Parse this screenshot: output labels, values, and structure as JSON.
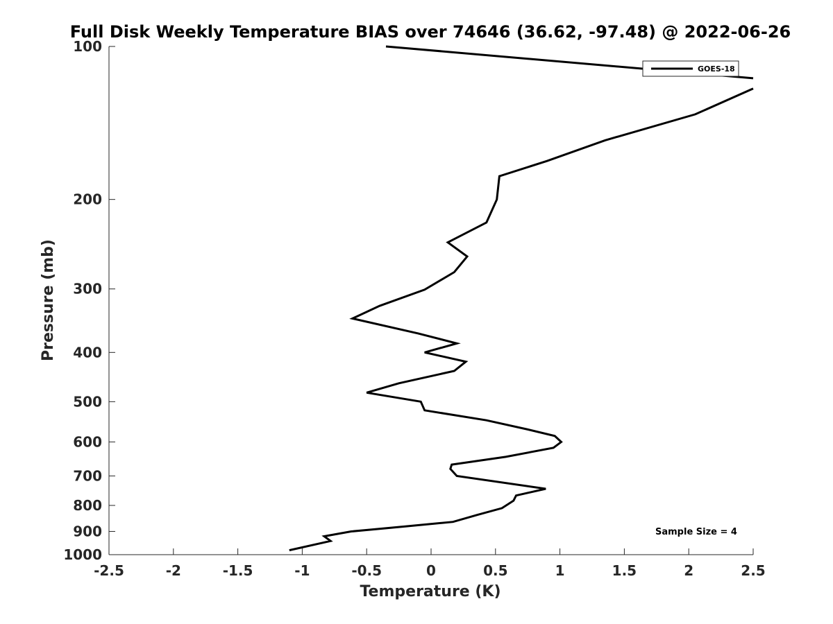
{
  "chart_data": {
    "type": "line",
    "title": "Full Disk Weekly Temperature BIAS over 74646 (36.62, -97.48) @ 2022-06-26",
    "xlabel": "Temperature (K)",
    "ylabel": "Pressure (mb)",
    "xlim": [
      -2.5,
      2.5
    ],
    "ylim": [
      1000,
      100
    ],
    "yscale": "log",
    "xticks": [
      "-2.5",
      "-2",
      "-1.5",
      "-1",
      "-0.5",
      "0",
      "0.5",
      "1",
      "1.5",
      "2",
      "2.5"
    ],
    "yticks": [
      "100",
      "200",
      "300",
      "400",
      "500",
      "600",
      "700",
      "800",
      "900",
      "1000"
    ],
    "grid": false,
    "legend_position": "top-right",
    "annotation": "Sample Size = 4",
    "series": [
      {
        "name": "GOES-18",
        "color": "#000000",
        "segments": [
          [
            [
              -0.35,
              100
            ],
            [
              2.5,
              115.5
            ]
          ],
          [
            [
              2.5,
              121
            ],
            [
              2.05,
              136
            ],
            [
              1.35,
              153
            ],
            [
              0.9,
              168
            ],
            [
              0.53,
              180
            ],
            [
              0.51,
              200
            ],
            [
              0.43,
              222
            ],
            [
              0.13,
              243
            ],
            [
              0.28,
              259
            ],
            [
              0.18,
              278
            ],
            [
              -0.05,
              301
            ],
            [
              -0.4,
              324
            ],
            [
              -0.61,
              343
            ],
            [
              -0.1,
              367
            ],
            [
              0.2,
              384
            ],
            [
              -0.05,
              400
            ],
            [
              0.27,
              417
            ],
            [
              0.18,
              435
            ],
            [
              -0.25,
              460
            ],
            [
              -0.5,
              480
            ],
            [
              -0.08,
              500
            ],
            [
              -0.05,
              520
            ],
            [
              0.43,
              544
            ],
            [
              0.75,
              567
            ],
            [
              0.96,
              584
            ],
            [
              1.01,
              600
            ],
            [
              0.95,
              616
            ],
            [
              0.58,
              642
            ],
            [
              0.16,
              665
            ],
            [
              0.15,
              678
            ],
            [
              0.2,
              700
            ],
            [
              0.89,
              742
            ],
            [
              0.66,
              765
            ],
            [
              0.64,
              783
            ],
            [
              0.55,
              810
            ],
            [
              0.36,
              835
            ],
            [
              0.17,
              862
            ],
            [
              -0.2,
              880
            ],
            [
              -0.62,
              900
            ],
            [
              -0.83,
              920
            ],
            [
              -0.78,
              940
            ],
            [
              -1.1,
              980
            ]
          ]
        ]
      }
    ]
  }
}
